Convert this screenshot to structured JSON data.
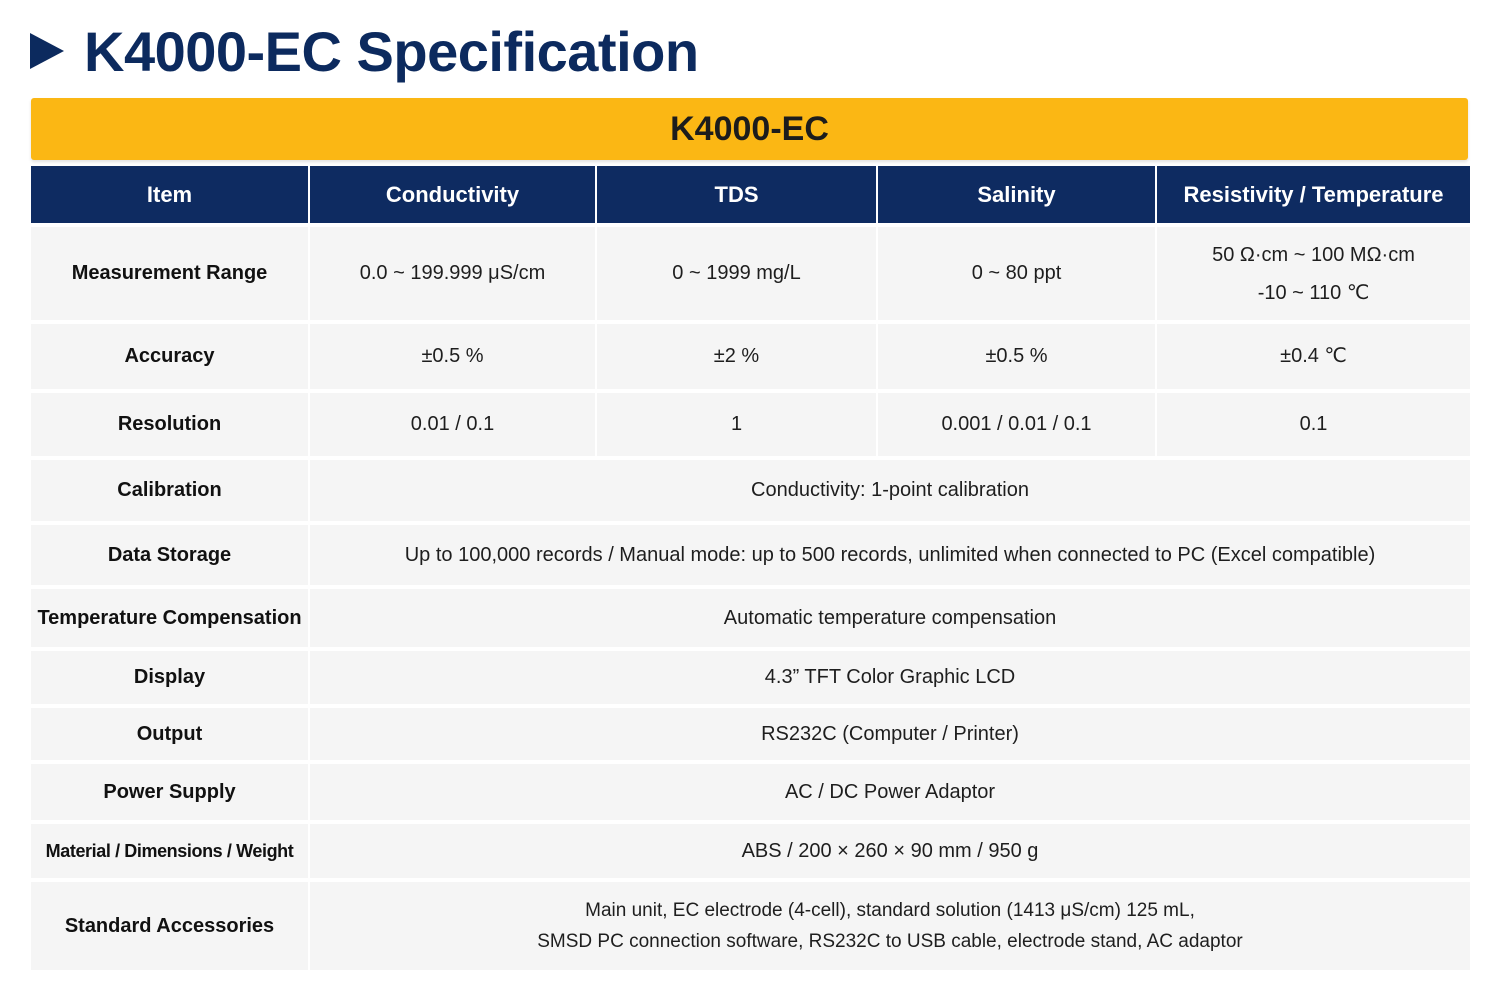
{
  "title": "K4000-EC Specification",
  "model": "K4000-EC",
  "header": [
    "Item",
    "Conductivity",
    "TDS",
    "Salinity",
    "Resistivity / Temperature"
  ],
  "rows": {
    "measurement_range": {
      "label": "Measurement Range",
      "conductivity": "0.0 ~ 199.999 μS/cm",
      "tds": "0 ~ 1999 mg/L",
      "salinity": "0 ~ 80 ppt",
      "resistivity": "50 Ω·cm ~ 100 MΩ·cm",
      "temperature": "-10 ~ 110 ℃"
    },
    "accuracy": {
      "label": "Accuracy",
      "conductivity": "±0.5 %",
      "tds": "±2 %",
      "salinity": "±0.5 %",
      "resistivity_temperature": "±0.4 ℃"
    },
    "resolution": {
      "label": "Resolution",
      "conductivity": "0.01 / 0.1",
      "tds": "1",
      "salinity": "0.001 / 0.01 / 0.1",
      "resistivity_temperature": "0.1"
    },
    "calibration": {
      "label": "Calibration",
      "value": "Conductivity:  1-point calibration"
    },
    "data_storage": {
      "label": "Data Storage",
      "value": "Up to 100,000 records / Manual mode: up to 500 records, unlimited when connected to PC (Excel compatible)"
    },
    "temperature_compensation": {
      "label": "Temperature Compensation",
      "value": "Automatic temperature compensation"
    },
    "display": {
      "label": "Display",
      "value": "4.3” TFT Color Graphic LCD"
    },
    "output": {
      "label": "Output",
      "value": "RS232C (Computer / Printer)"
    },
    "power_supply": {
      "label": "Power Supply",
      "value": "AC / DC Power Adaptor"
    },
    "material": {
      "label": "Material / Dimensions / Weight",
      "value": "ABS / 200 × 260 × 90 mm / 950 g"
    },
    "accessories": {
      "label": "Standard Accessories",
      "line1": "Main unit, EC electrode (4-cell), standard solution (1413 μS/cm) 125 mL,",
      "line2": "SMSD PC connection software, RS232C to USB cable, electrode stand, AC adaptor"
    }
  },
  "colors": {
    "title": "#0c2a5e",
    "model_bar": "#fbb714",
    "header_bg": "#0e2b61",
    "cell_bg": "#f5f5f5"
  }
}
